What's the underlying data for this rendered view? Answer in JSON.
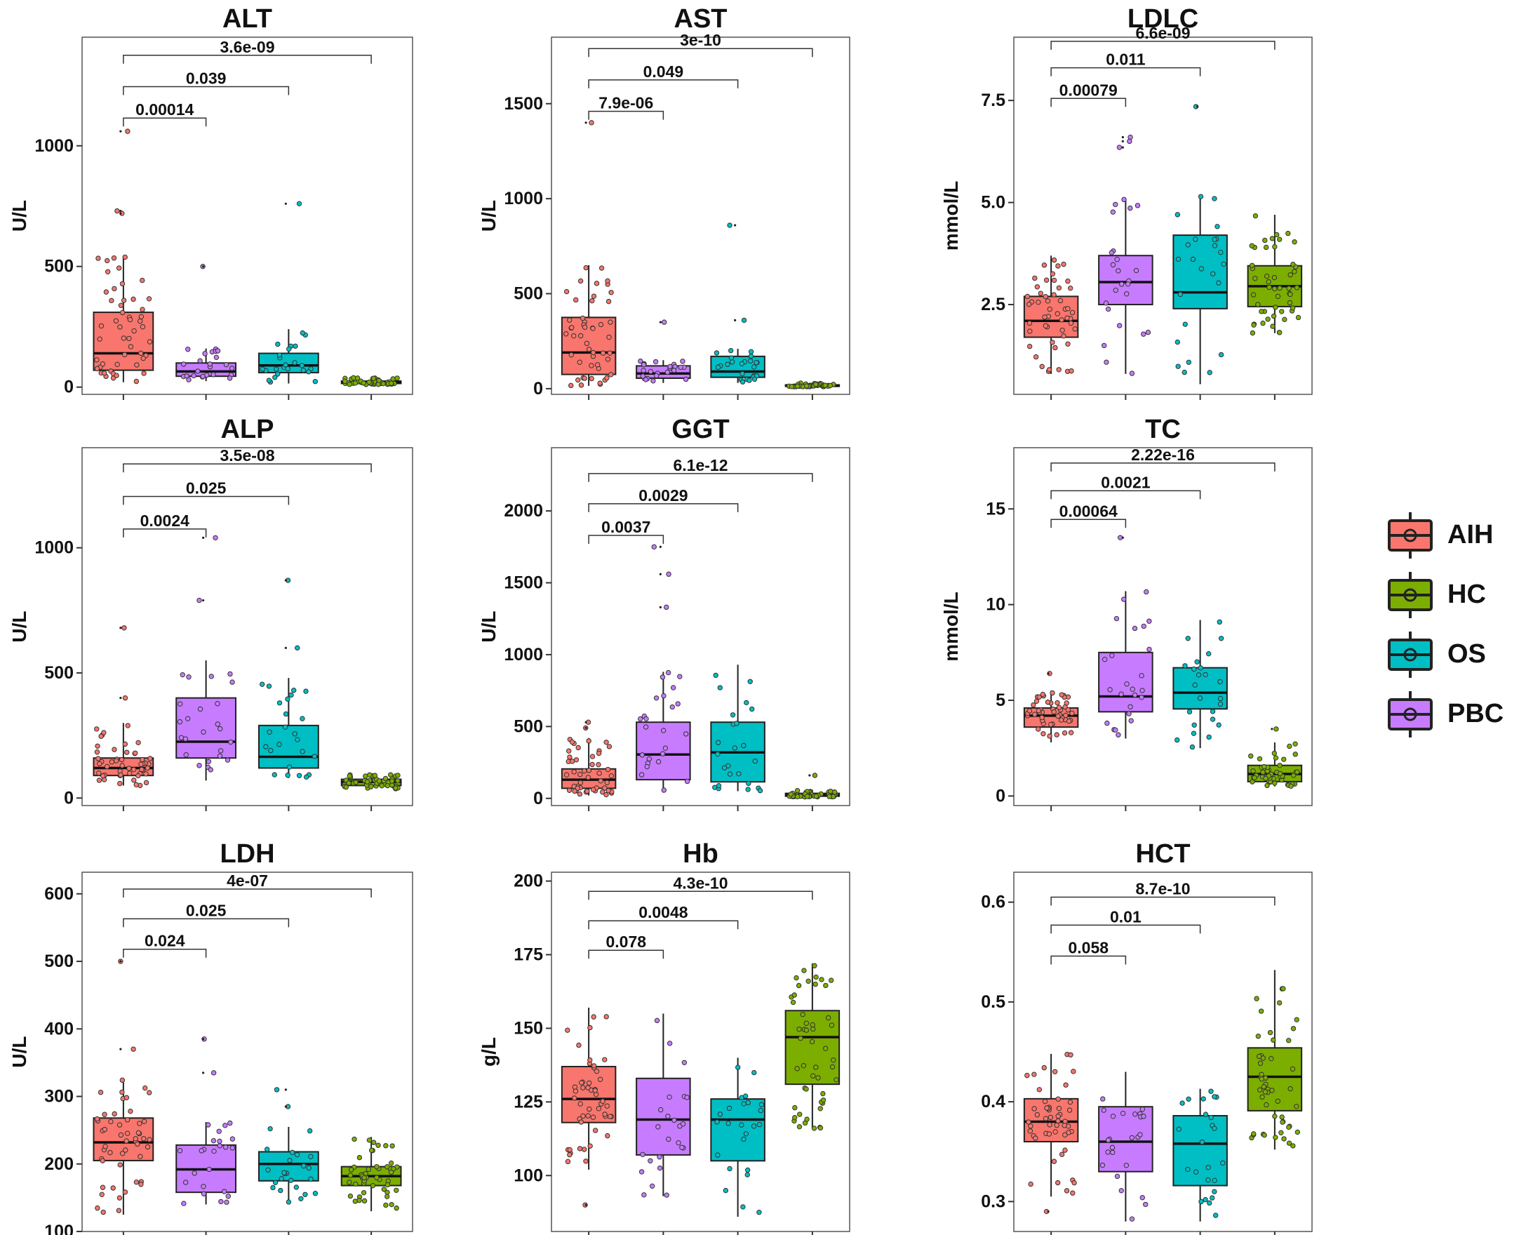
{
  "colors": {
    "AIH": "#F8766D",
    "PBC": "#C77CFF",
    "OS": "#00BFC4",
    "HC": "#7CAE00"
  },
  "legend": {
    "items": [
      {
        "label": "AIH",
        "color": "#F8766D"
      },
      {
        "label": "HC",
        "color": "#7CAE00"
      },
      {
        "label": "OS",
        "color": "#00BFC4"
      },
      {
        "label": "PBC",
        "color": "#C77CFF"
      }
    ]
  },
  "chart_data": [
    {
      "type": "box",
      "title": "ALT",
      "ylabel": "U/L",
      "ylim": [
        -30,
        1450
      ],
      "yticks": [
        0,
        500,
        1000
      ],
      "ytick_labels": [
        "0",
        "500",
        "1000"
      ],
      "groups": [
        "AIH",
        "PBC",
        "OS",
        "HC"
      ],
      "boxes": [
        {
          "group": "AIH",
          "min": 20,
          "q1": 70,
          "median": 140,
          "q3": 310,
          "max": 545,
          "outliers": [
            1060,
            730,
            720
          ]
        },
        {
          "group": "PBC",
          "min": 25,
          "q1": 45,
          "median": 65,
          "q3": 100,
          "max": 160,
          "outliers": [
            500
          ]
        },
        {
          "group": "OS",
          "min": 15,
          "q1": 60,
          "median": 90,
          "q3": 140,
          "max": 240,
          "outliers": [
            760
          ]
        },
        {
          "group": "HC",
          "min": 10,
          "q1": 15,
          "median": 20,
          "q3": 25,
          "max": 40,
          "outliers": []
        }
      ],
      "comparisons": [
        {
          "pair": [
            "AIH",
            "PBC"
          ],
          "label": "0.00014",
          "y": 1115
        },
        {
          "pair": [
            "AIH",
            "OS"
          ],
          "label": "0.039",
          "y": 1245
        },
        {
          "pair": [
            "AIH",
            "HC"
          ],
          "label": "3.6e-09",
          "y": 1375
        }
      ]
    },
    {
      "type": "box",
      "title": "AST",
      "ylabel": "U/L",
      "ylim": [
        -30,
        1850
      ],
      "yticks": [
        0,
        500,
        1000,
        1500
      ],
      "ytick_labels": [
        "0",
        "500",
        "1000",
        "1500"
      ],
      "groups": [
        "AIH",
        "PBC",
        "OS",
        "HC"
      ],
      "boxes": [
        {
          "group": "AIH",
          "min": 15,
          "q1": 75,
          "median": 190,
          "q3": 375,
          "max": 650,
          "outliers": [
            1400
          ]
        },
        {
          "group": "PBC",
          "min": 30,
          "q1": 55,
          "median": 80,
          "q3": 120,
          "max": 150,
          "outliers": [
            350
          ]
        },
        {
          "group": "OS",
          "min": 30,
          "q1": 60,
          "median": 90,
          "q3": 170,
          "max": 210,
          "outliers": [
            860,
            360
          ]
        },
        {
          "group": "HC",
          "min": 10,
          "q1": 12,
          "median": 16,
          "q3": 20,
          "max": 30,
          "outliers": []
        }
      ],
      "comparisons": [
        {
          "pair": [
            "AIH",
            "PBC"
          ],
          "label": "7.9e-06",
          "y": 1460
        },
        {
          "pair": [
            "AIH",
            "OS"
          ],
          "label": "0.049",
          "y": 1625
        },
        {
          "pair": [
            "AIH",
            "HC"
          ],
          "label": "3e-10",
          "y": 1790
        }
      ]
    },
    {
      "type": "box",
      "title": "LDLC",
      "ylabel": "mmol/L",
      "ylim": [
        0.3,
        9.05
      ],
      "yticks": [
        2.5,
        5.0,
        7.5
      ],
      "ytick_labels": [
        "2.5",
        "5.0",
        "7.5"
      ],
      "groups": [
        "AIH",
        "PBC",
        "OS",
        "HC"
      ],
      "boxes": [
        {
          "group": "AIH",
          "min": 0.8,
          "q1": 1.7,
          "median": 2.1,
          "q3": 2.7,
          "max": 3.7,
          "outliers": []
        },
        {
          "group": "PBC",
          "min": 0.8,
          "q1": 2.5,
          "median": 3.05,
          "q3": 3.7,
          "max": 5.1,
          "outliers": [
            6.6,
            6.5,
            6.35
          ]
        },
        {
          "group": "OS",
          "min": 0.55,
          "q1": 2.4,
          "median": 2.8,
          "q3": 4.2,
          "max": 5.2,
          "outliers": [
            7.35
          ]
        },
        {
          "group": "HC",
          "min": 1.8,
          "q1": 2.45,
          "median": 2.95,
          "q3": 3.45,
          "max": 4.7,
          "outliers": []
        }
      ],
      "comparisons": [
        {
          "pair": [
            "AIH",
            "PBC"
          ],
          "label": "0.00079",
          "y": 7.55
        },
        {
          "pair": [
            "AIH",
            "OS"
          ],
          "label": "0.011",
          "y": 8.3
        },
        {
          "pair": [
            "AIH",
            "HC"
          ],
          "label": "6.6e-09",
          "y": 8.95
        }
      ]
    },
    {
      "type": "box",
      "title": "ALP",
      "ylabel": "U/L",
      "ylim": [
        -30,
        1400
      ],
      "yticks": [
        0,
        500,
        1000
      ],
      "ytick_labels": [
        "0",
        "500",
        "1000"
      ],
      "groups": [
        "AIH",
        "PBC",
        "OS",
        "HC"
      ],
      "boxes": [
        {
          "group": "AIH",
          "min": 50,
          "q1": 90,
          "median": 120,
          "q3": 160,
          "max": 300,
          "outliers": [
            680,
            400
          ]
        },
        {
          "group": "PBC",
          "min": 70,
          "q1": 160,
          "median": 225,
          "q3": 400,
          "max": 550,
          "outliers": [
            1040,
            790
          ]
        },
        {
          "group": "OS",
          "min": 80,
          "q1": 120,
          "median": 165,
          "q3": 290,
          "max": 480,
          "outliers": [
            870,
            600
          ]
        },
        {
          "group": "HC",
          "min": 35,
          "q1": 50,
          "median": 65,
          "q3": 75,
          "max": 95,
          "outliers": []
        }
      ],
      "comparisons": [
        {
          "pair": [
            "AIH",
            "PBC"
          ],
          "label": "0.0024",
          "y": 1075
        },
        {
          "pair": [
            "AIH",
            "OS"
          ],
          "label": "0.025",
          "y": 1205
        },
        {
          "pair": [
            "AIH",
            "HC"
          ],
          "label": "3.5e-08",
          "y": 1335
        }
      ]
    },
    {
      "type": "box",
      "title": "GGT",
      "ylabel": "U/L",
      "ylim": [
        -50,
        2440
      ],
      "yticks": [
        0,
        500,
        1000,
        1500,
        2000
      ],
      "ytick_labels": [
        "0",
        "500",
        "1000",
        "1500",
        "2000"
      ],
      "groups": [
        "AIH",
        "PBC",
        "OS",
        "HC"
      ],
      "boxes": [
        {
          "group": "AIH",
          "min": 20,
          "q1": 70,
          "median": 130,
          "q3": 205,
          "max": 420,
          "outliers": [
            530,
            490
          ]
        },
        {
          "group": "PBC",
          "min": 40,
          "q1": 130,
          "median": 305,
          "q3": 530,
          "max": 880,
          "outliers": [
            1750,
            1560,
            1330
          ]
        },
        {
          "group": "OS",
          "min": 50,
          "q1": 115,
          "median": 320,
          "q3": 530,
          "max": 930,
          "outliers": []
        },
        {
          "group": "HC",
          "min": 10,
          "q1": 15,
          "median": 25,
          "q3": 35,
          "max": 60,
          "outliers": [
            160
          ]
        }
      ],
      "comparisons": [
        {
          "pair": [
            "AIH",
            "PBC"
          ],
          "label": "0.0037",
          "y": 1830
        },
        {
          "pair": [
            "AIH",
            "OS"
          ],
          "label": "0.0029",
          "y": 2050
        },
        {
          "pair": [
            "AIH",
            "HC"
          ],
          "label": "6.1e-12",
          "y": 2260
        }
      ]
    },
    {
      "type": "box",
      "title": "TC",
      "ylabel": "mmol/L",
      "ylim": [
        -0.5,
        18.2
      ],
      "yticks": [
        0,
        5,
        10,
        15
      ],
      "ytick_labels": [
        "0",
        "5",
        "10",
        "15"
      ],
      "groups": [
        "AIH",
        "PBC",
        "OS",
        "HC"
      ],
      "boxes": [
        {
          "group": "AIH",
          "min": 2.8,
          "q1": 3.6,
          "median": 4.2,
          "q3": 4.6,
          "max": 5.5,
          "outliers": [
            6.4
          ]
        },
        {
          "group": "PBC",
          "min": 3.0,
          "q1": 4.4,
          "median": 5.2,
          "q3": 7.5,
          "max": 10.7,
          "outliers": [
            13.5
          ]
        },
        {
          "group": "OS",
          "min": 2.5,
          "q1": 4.55,
          "median": 5.4,
          "q3": 6.7,
          "max": 9.2,
          "outliers": []
        },
        {
          "group": "HC",
          "min": 0.5,
          "q1": 0.75,
          "median": 1.15,
          "q3": 1.6,
          "max": 2.8,
          "outliers": [
            3.5
          ]
        }
      ],
      "comparisons": [
        {
          "pair": [
            "AIH",
            "PBC"
          ],
          "label": "0.00064",
          "y": 14.45
        },
        {
          "pair": [
            "AIH",
            "OS"
          ],
          "label": "0.0021",
          "y": 15.95
        },
        {
          "pair": [
            "AIH",
            "HC"
          ],
          "label": "2.22e-16",
          "y": 17.4
        }
      ]
    },
    {
      "type": "box",
      "title": "LDH",
      "ylabel": "U/L",
      "ylim": [
        100,
        632
      ],
      "yticks": [
        100,
        200,
        300,
        400,
        500,
        600
      ],
      "ytick_labels": [
        "100",
        "200",
        "300",
        "400",
        "500",
        "600"
      ],
      "groups": [
        "AIH",
        "PBC",
        "OS",
        "HC"
      ],
      "boxes": [
        {
          "group": "AIH",
          "min": 125,
          "q1": 205,
          "median": 232,
          "q3": 268,
          "max": 325,
          "outliers": [
            500,
            370
          ]
        },
        {
          "group": "PBC",
          "min": 140,
          "q1": 158,
          "median": 192,
          "q3": 228,
          "max": 262,
          "outliers": [
            385,
            335
          ]
        },
        {
          "group": "OS",
          "min": 140,
          "q1": 175,
          "median": 200,
          "q3": 218,
          "max": 255,
          "outliers": [
            310,
            285
          ]
        },
        {
          "group": "HC",
          "min": 130,
          "q1": 168,
          "median": 182,
          "q3": 196,
          "max": 240,
          "outliers": []
        }
      ],
      "comparisons": [
        {
          "pair": [
            "AIH",
            "PBC"
          ],
          "label": "0.024",
          "y": 518
        },
        {
          "pair": [
            "AIH",
            "OS"
          ],
          "label": "0.025",
          "y": 563
        },
        {
          "pair": [
            "AIH",
            "HC"
          ],
          "label": "4e-07",
          "y": 607
        }
      ]
    },
    {
      "type": "box",
      "title": "Hb",
      "ylabel": "g/L",
      "ylim": [
        81,
        203
      ],
      "yticks": [
        100,
        125,
        150,
        175,
        200
      ],
      "ytick_labels": [
        "100",
        "125",
        "150",
        "175",
        "200"
      ],
      "groups": [
        "AIH",
        "PBC",
        "OS",
        "HC"
      ],
      "boxes": [
        {
          "group": "AIH",
          "min": 102,
          "q1": 118,
          "median": 126,
          "q3": 137,
          "max": 157,
          "outliers": [
            90
          ]
        },
        {
          "group": "PBC",
          "min": 93,
          "q1": 107,
          "median": 119,
          "q3": 133,
          "max": 155,
          "outliers": []
        },
        {
          "group": "OS",
          "min": 86,
          "q1": 105,
          "median": 119,
          "q3": 126,
          "max": 140,
          "outliers": []
        },
        {
          "group": "HC",
          "min": 116,
          "q1": 131,
          "median": 147,
          "q3": 156,
          "max": 172,
          "outliers": []
        }
      ],
      "comparisons": [
        {
          "pair": [
            "AIH",
            "PBC"
          ],
          "label": "0.078",
          "y": 176.5
        },
        {
          "pair": [
            "AIH",
            "OS"
          ],
          "label": "0.0048",
          "y": 186.5
        },
        {
          "pair": [
            "AIH",
            "HC"
          ],
          "label": "4.3e-10",
          "y": 196.5
        }
      ]
    },
    {
      "type": "box",
      "title": "HCT",
      "ylabel": "",
      "ylim": [
        0.27,
        0.63
      ],
      "yticks": [
        0.3,
        0.4,
        0.5,
        0.6
      ],
      "ytick_labels": [
        "0.3",
        "0.4",
        "0.5",
        "0.6"
      ],
      "groups": [
        "AIH",
        "PBC",
        "OS",
        "HC"
      ],
      "boxes": [
        {
          "group": "AIH",
          "min": 0.305,
          "q1": 0.36,
          "median": 0.38,
          "q3": 0.403,
          "max": 0.448,
          "outliers": [
            0.29
          ]
        },
        {
          "group": "PBC",
          "min": 0.28,
          "q1": 0.33,
          "median": 0.36,
          "q3": 0.395,
          "max": 0.43,
          "outliers": []
        },
        {
          "group": "OS",
          "min": 0.28,
          "q1": 0.316,
          "median": 0.358,
          "q3": 0.386,
          "max": 0.413,
          "outliers": []
        },
        {
          "group": "HC",
          "min": 0.352,
          "q1": 0.391,
          "median": 0.425,
          "q3": 0.454,
          "max": 0.532,
          "outliers": []
        }
      ],
      "comparisons": [
        {
          "pair": [
            "AIH",
            "PBC"
          ],
          "label": "0.058",
          "y": 0.546
        },
        {
          "pair": [
            "AIH",
            "OS"
          ],
          "label": "0.01",
          "y": 0.577
        },
        {
          "pair": [
            "AIH",
            "HC"
          ],
          "label": "8.7e-10",
          "y": 0.605
        }
      ]
    }
  ]
}
